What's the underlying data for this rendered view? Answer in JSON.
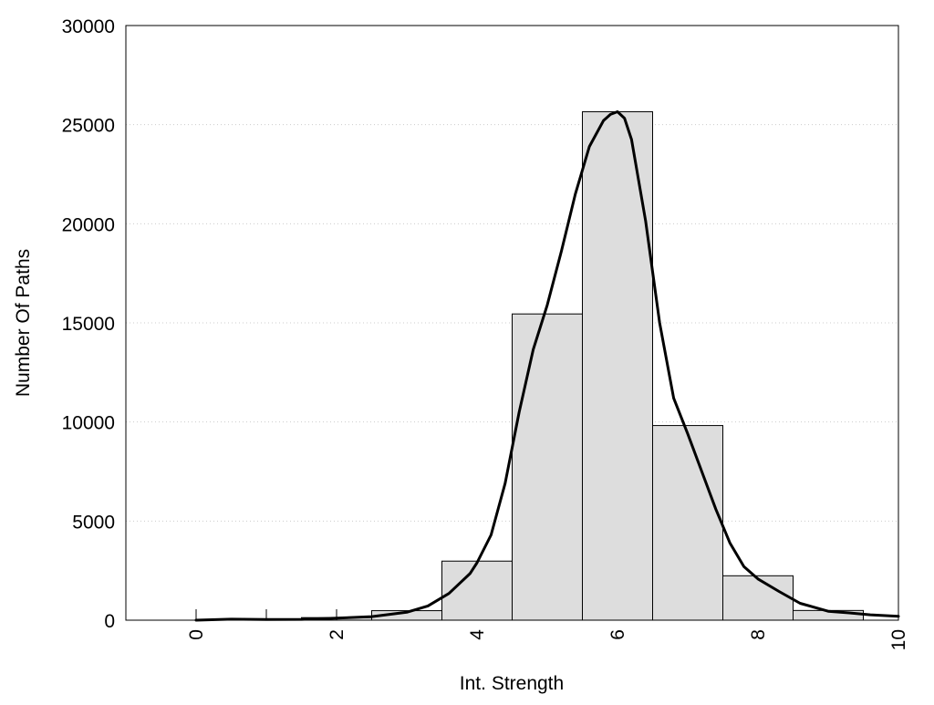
{
  "chart_data": {
    "type": "bar",
    "title": "",
    "xlabel": "Int. Strength",
    "ylabel": "Number Of Paths",
    "xlim": [
      -1,
      10
    ],
    "ylim": [
      0,
      30000
    ],
    "x_ticks": [
      "0",
      "2",
      "4",
      "6",
      "8",
      "10"
    ],
    "x_tick_values": [
      0,
      2,
      4,
      6,
      8,
      10
    ],
    "y_ticks": [
      "0",
      "5000",
      "10000",
      "15000",
      "20000",
      "25000",
      "30000"
    ],
    "y_tick_values": [
      0,
      5000,
      10000,
      15000,
      20000,
      25000,
      30000
    ],
    "minor_x_ticks": [
      0,
      1,
      2
    ],
    "grid": "horizontal dotted",
    "bar_width": 1,
    "bars": [
      {
        "x": 0,
        "value": 0
      },
      {
        "x": 1,
        "value": 30
      },
      {
        "x": 2,
        "value": 130
      },
      {
        "x": 3,
        "value": 480
      },
      {
        "x": 4,
        "value": 2980
      },
      {
        "x": 5,
        "value": 15450
      },
      {
        "x": 6,
        "value": 25650
      },
      {
        "x": 7,
        "value": 9820
      },
      {
        "x": 8,
        "value": 2240
      },
      {
        "x": 9,
        "value": 490
      }
    ],
    "curve": {
      "x": [
        0,
        0.5,
        1,
        1.5,
        2,
        2.5,
        3,
        3.3,
        3.6,
        3.9,
        4,
        4.2,
        4.4,
        4.6,
        4.8,
        5,
        5.2,
        5.4,
        5.6,
        5.8,
        5.9,
        6,
        6.1,
        6.2,
        6.4,
        6.6,
        6.8,
        7,
        7.2,
        7.4,
        7.6,
        7.8,
        8,
        8.3,
        8.6,
        9,
        9.3,
        9.6,
        10
      ],
      "y": [
        0,
        50,
        30,
        40,
        100,
        180,
        400,
        720,
        1350,
        2350,
        2900,
        4300,
        6900,
        10500,
        13650,
        15900,
        18600,
        21500,
        23900,
        25200,
        25520,
        25650,
        25320,
        24250,
        20150,
        15000,
        11200,
        9400,
        7500,
        5600,
        3900,
        2700,
        2080,
        1450,
        850,
        450,
        370,
        270,
        200
      ]
    },
    "colors": {
      "bar_fill": "#dddddd",
      "bar_stroke": "#000000",
      "curve": "#000000",
      "grid": "#cccccc",
      "frame": "#000000"
    }
  }
}
